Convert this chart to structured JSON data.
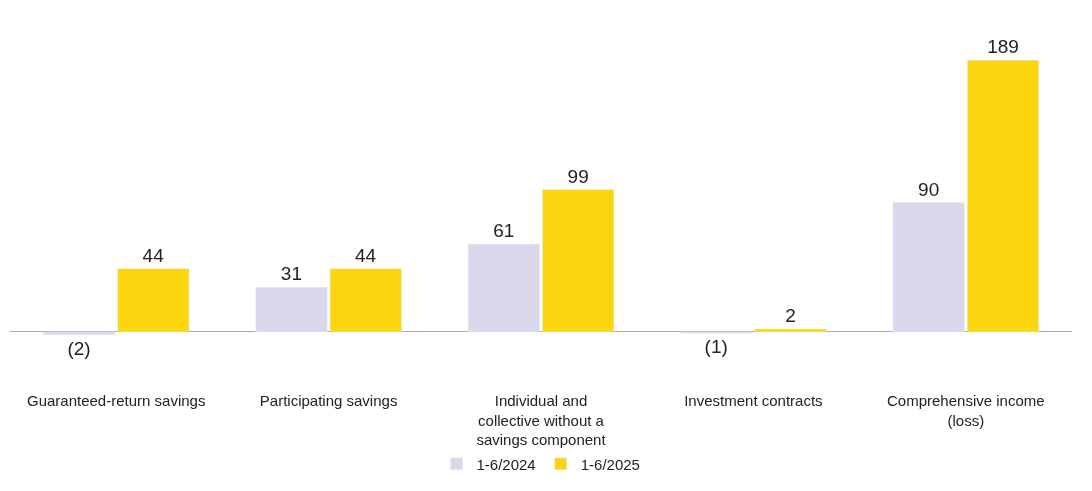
{
  "chart_data": {
    "type": "bar",
    "categories": [
      "Guaranteed-return savings",
      "Participating savings",
      "Individual and collective without a savings component",
      "Investment contracts",
      "Comprehensive income (loss)"
    ],
    "series": [
      {
        "name": "1-6/2024",
        "color": "#d9d8ea",
        "values": [
          -2,
          31,
          61,
          -1,
          90
        ],
        "value_labels": [
          "(2)",
          "31",
          "61",
          "(1)",
          "90"
        ]
      },
      {
        "name": "1-6/2025",
        "color": "#fbd50e",
        "values": [
          44,
          44,
          99,
          2,
          189
        ],
        "value_labels": [
          "44",
          "44",
          "99",
          "2",
          "189"
        ]
      }
    ],
    "tick_labels": "x",
    "legend": "bottom"
  }
}
